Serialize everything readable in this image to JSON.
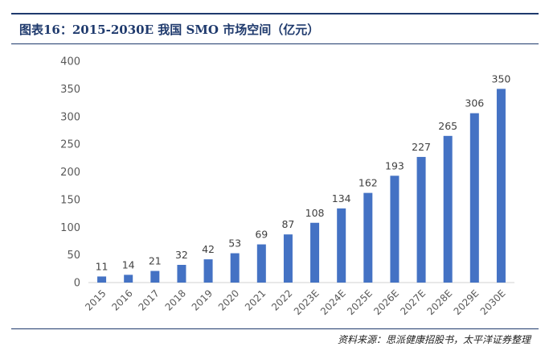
{
  "header": {
    "title": "图表16：2015-2030E 我国 SMO 市场空间（亿元）"
  },
  "footer": {
    "source": "资料来源：思派健康招股书，太平洋证券整理"
  },
  "colors": {
    "bar": "#4472C4",
    "rule": "#1f3a6d",
    "axis_text": "#595959"
  },
  "chart_data": {
    "type": "bar",
    "title": "",
    "xlabel": "",
    "ylabel": "",
    "ylim": [
      0,
      400
    ],
    "yticks": [
      0,
      50,
      100,
      150,
      200,
      250,
      300,
      350,
      400
    ],
    "grid": false,
    "legend": "none",
    "categories": [
      "2015",
      "2016",
      "2017",
      "2018",
      "2019",
      "2020",
      "2021",
      "2022",
      "2023E",
      "2024E",
      "2025E",
      "2026E",
      "2027E",
      "2028E",
      "2029E",
      "2030E"
    ],
    "series": [
      {
        "values": [
          11,
          14,
          21,
          32,
          42,
          53,
          69,
          87,
          108,
          134,
          162,
          193,
          227,
          265,
          306,
          350
        ]
      }
    ]
  }
}
